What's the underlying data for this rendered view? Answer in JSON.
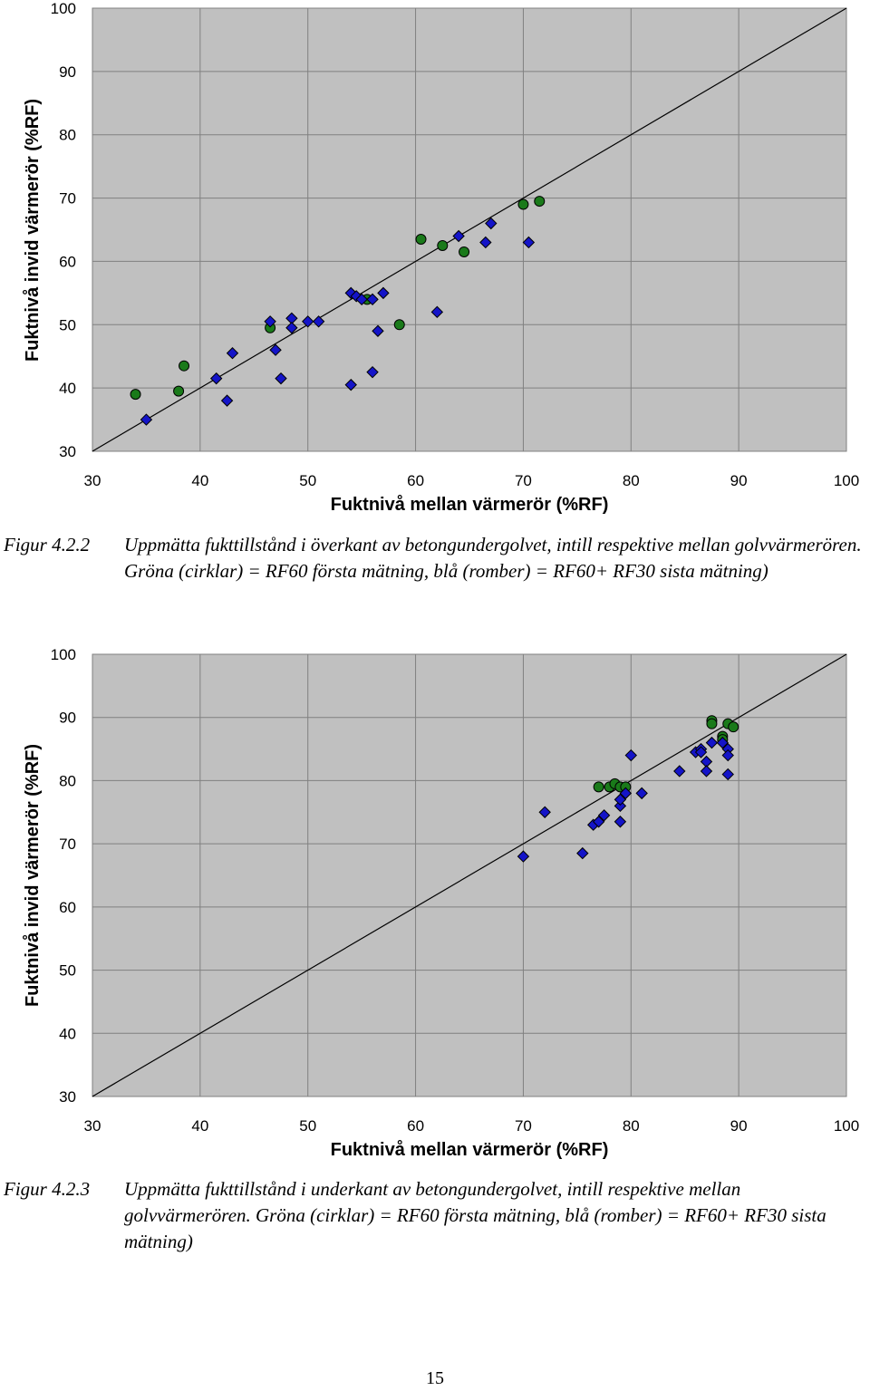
{
  "figures": [
    {
      "caption_number": "Figur 4.2.2",
      "caption_text": "Uppmätta fukttillstånd i överkant av betongundergolvet, intill respektive mellan golvvärmerören. Gröna (cirklar) = RF60 första mätning, blå (romber) = RF60+ RF30 sista mätning)"
    },
    {
      "caption_number": "Figur 4.2.3",
      "caption_text": "Uppmätta fukttillstånd i underkant av betongundergolvet, intill respektive mellan golvvärmerören. Gröna (cirklar) = RF60 första mätning, blå (romber) = RF60+ RF30 sista mätning)"
    }
  ],
  "page_number": "15",
  "colors": {
    "plot_background": "#c0c0c0",
    "grid": "#808080",
    "circle_fill": "#1a7a1a",
    "diamond_fill": "#1414c8"
  },
  "chart_data": [
    {
      "type": "scatter",
      "xlabel": "Fuktnivå mellan värmerör (%RF)",
      "ylabel": "Fuktnivå invid värmerör (%RF)",
      "xlim": [
        30,
        100
      ],
      "ylim": [
        30,
        100
      ],
      "x_ticks": [
        "30",
        "40",
        "50",
        "60",
        "70",
        "80",
        "90",
        "100"
      ],
      "y_ticks": [
        "30",
        "40",
        "50",
        "60",
        "70",
        "80",
        "90",
        "100"
      ],
      "grid": true,
      "reference_line": [
        [
          30,
          30
        ],
        [
          100,
          100
        ]
      ],
      "series": [
        {
          "marker": "circle",
          "color": "#1a7a1a",
          "points": [
            [
              34,
              39
            ],
            [
              38,
              39.5
            ],
            [
              38.5,
              43.5
            ],
            [
              46.5,
              49.5
            ],
            [
              55.5,
              54
            ],
            [
              58.5,
              50
            ],
            [
              60.5,
              63.5
            ],
            [
              62.5,
              62.5
            ],
            [
              64.5,
              61.5
            ],
            [
              70,
              69
            ],
            [
              71.5,
              69.5
            ]
          ]
        },
        {
          "marker": "diamond",
          "color": "#1414c8",
          "points": [
            [
              35,
              35
            ],
            [
              41.5,
              41.5
            ],
            [
              42.5,
              38
            ],
            [
              43,
              45.5
            ],
            [
              46.5,
              50.5
            ],
            [
              47,
              46
            ],
            [
              47.5,
              41.5
            ],
            [
              48.5,
              51
            ],
            [
              48.5,
              49.5
            ],
            [
              50,
              50.5
            ],
            [
              51,
              50.5
            ],
            [
              54,
              55
            ],
            [
              54,
              40.5
            ],
            [
              54.5,
              54.5
            ],
            [
              55,
              54
            ],
            [
              56,
              54
            ],
            [
              56,
              42.5
            ],
            [
              56.5,
              49
            ],
            [
              57,
              55
            ],
            [
              62,
              52
            ],
            [
              64,
              64
            ],
            [
              66.5,
              63
            ],
            [
              67,
              66
            ],
            [
              70.5,
              63
            ]
          ]
        }
      ]
    },
    {
      "type": "scatter",
      "xlabel": "Fuktnivå mellan värmerör (%RF)",
      "ylabel": "Fuktnivå invid värmerör (%RF)",
      "xlim": [
        30,
        100
      ],
      "ylim": [
        30,
        100
      ],
      "x_ticks": [
        "30",
        "40",
        "50",
        "60",
        "70",
        "80",
        "90",
        "100"
      ],
      "y_ticks": [
        "30",
        "40",
        "50",
        "60",
        "70",
        "80",
        "90",
        "100"
      ],
      "grid": true,
      "reference_line": [
        [
          30,
          30
        ],
        [
          100,
          100
        ]
      ],
      "series": [
        {
          "marker": "circle",
          "color": "#1a7a1a",
          "points": [
            [
              77,
              79
            ],
            [
              78,
              79
            ],
            [
              78.5,
              79.5
            ],
            [
              79,
              79
            ],
            [
              79.5,
              79
            ],
            [
              87.5,
              89.5
            ],
            [
              87.5,
              89
            ],
            [
              88.5,
              87
            ],
            [
              88.5,
              86.5
            ],
            [
              89,
              89
            ],
            [
              89.5,
              88.5
            ]
          ]
        },
        {
          "marker": "diamond",
          "color": "#1414c8",
          "points": [
            [
              70,
              68
            ],
            [
              72,
              75
            ],
            [
              75.5,
              68.5
            ],
            [
              76.5,
              73
            ],
            [
              77,
              73.5
            ],
            [
              77.5,
              74.5
            ],
            [
              79,
              73.5
            ],
            [
              79,
              76
            ],
            [
              79,
              77
            ],
            [
              79.5,
              78
            ],
            [
              80,
              84
            ],
            [
              81,
              78
            ],
            [
              84.5,
              81.5
            ],
            [
              86,
              84.5
            ],
            [
              86.5,
              85
            ],
            [
              86.5,
              84.5
            ],
            [
              87,
              83
            ],
            [
              87,
              81.5
            ],
            [
              87.5,
              86
            ],
            [
              88.5,
              86
            ],
            [
              89,
              85
            ],
            [
              89,
              84
            ],
            [
              89,
              81
            ]
          ]
        }
      ]
    }
  ]
}
